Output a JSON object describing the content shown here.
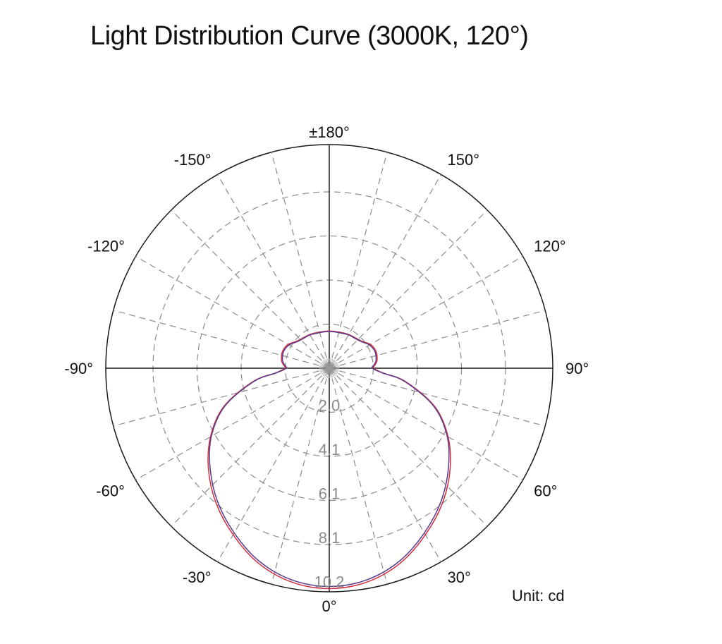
{
  "title": "Light Distribution Curve (3000K, 120°)",
  "unit_label": "Unit: cd",
  "chart_data": {
    "type": "polar",
    "title": "Light Distribution Curve (3000K, 120°)",
    "unit": "cd",
    "angle_zero": "bottom",
    "angle_direction": "counterclockwise-positive-right",
    "angle_labels": [
      {
        "angle": 0,
        "text": "0°"
      },
      {
        "angle": 30,
        "text": "30°"
      },
      {
        "angle": 60,
        "text": "60°"
      },
      {
        "angle": 90,
        "text": "90°"
      },
      {
        "angle": 120,
        "text": "120°"
      },
      {
        "angle": 150,
        "text": "150°"
      },
      {
        "angle": 180,
        "text": "±180°"
      },
      {
        "angle": -150,
        "text": "-150°"
      },
      {
        "angle": -120,
        "text": "-120°"
      },
      {
        "angle": -90,
        "text": "-90°"
      },
      {
        "angle": -60,
        "text": "-60°"
      },
      {
        "angle": -30,
        "text": "-30°"
      }
    ],
    "radial_ticks": [
      {
        "value": 2.0,
        "text": "2.0"
      },
      {
        "value": 4.1,
        "text": "4.1"
      },
      {
        "value": 6.1,
        "text": "6.1"
      },
      {
        "value": 8.1,
        "text": "8.1"
      },
      {
        "value": 10.2,
        "text": "10.2"
      }
    ],
    "r_max": 10.2,
    "grid": true,
    "series": [
      {
        "color": "#d2303f",
        "angles": [
          0,
          10,
          20,
          30,
          40,
          50,
          60,
          70,
          80,
          85,
          90,
          95,
          100,
          110,
          120,
          130,
          140,
          150,
          160,
          170,
          180,
          -170,
          -160,
          -150,
          -140,
          -130,
          -120,
          -110,
          -100,
          -95,
          -90,
          -85,
          -80,
          -70,
          -60,
          -50,
          -40,
          -30,
          -20,
          -10
        ],
        "values": [
          10.2,
          10.05,
          9.6,
          8.9,
          8.15,
          7.3,
          6.35,
          5.2,
          3.6,
          2.5,
          2.05,
          2.15,
          2.25,
          2.3,
          2.2,
          1.95,
          1.85,
          1.8,
          1.75,
          1.72,
          1.72,
          1.72,
          1.75,
          1.8,
          1.85,
          1.95,
          2.2,
          2.3,
          2.25,
          2.15,
          2.05,
          2.5,
          3.6,
          5.2,
          6.35,
          7.3,
          8.15,
          8.9,
          9.6,
          10.05
        ]
      },
      {
        "color": "#5a3a8c",
        "angles": [
          0,
          10,
          20,
          30,
          40,
          50,
          60,
          70,
          80,
          85,
          90,
          95,
          100,
          110,
          120,
          130,
          140,
          150,
          160,
          170,
          180,
          -170,
          -160,
          -150,
          -140,
          -130,
          -120,
          -110,
          -100,
          -95,
          -90,
          -85,
          -80,
          -70,
          -60,
          -50,
          -40,
          -30,
          -20,
          -10
        ],
        "values": [
          10.1,
          9.95,
          9.5,
          8.8,
          8.05,
          7.2,
          6.3,
          5.15,
          3.55,
          2.45,
          2.0,
          2.1,
          2.2,
          2.25,
          2.15,
          1.92,
          1.82,
          1.78,
          1.72,
          1.7,
          1.7,
          1.7,
          1.72,
          1.78,
          1.82,
          1.92,
          2.15,
          2.25,
          2.2,
          2.1,
          2.0,
          2.45,
          3.55,
          5.15,
          6.3,
          7.2,
          8.05,
          8.8,
          9.5,
          9.95
        ]
      }
    ]
  }
}
